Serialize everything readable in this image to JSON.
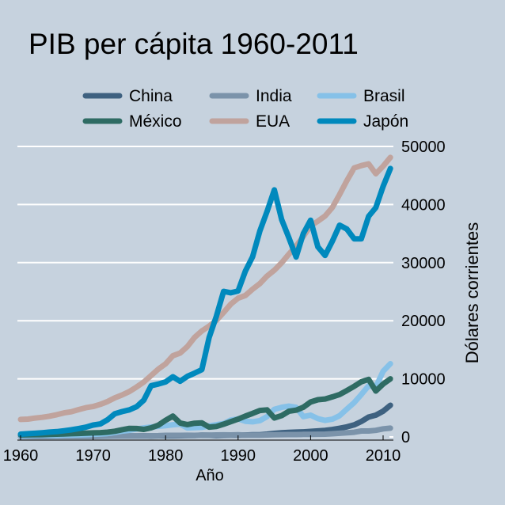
{
  "chart_data": {
    "type": "line",
    "title": "PIB per cápita 1960-2011",
    "xlabel": "Año",
    "ylabel": "Dólares corrientes",
    "xlim": [
      1960,
      2011
    ],
    "ylim": [
      0,
      50000
    ],
    "x_ticks": [
      "1960",
      "1970",
      "1980",
      "1990",
      "2000",
      "2010"
    ],
    "y_ticks": [
      "0",
      "10000",
      "20000",
      "30000",
      "40000",
      "50000"
    ],
    "grid": true,
    "y_axis_side": "right",
    "legend_placement": "top",
    "background": "#c6d2de",
    "x": [
      1960,
      1961,
      1962,
      1963,
      1964,
      1965,
      1966,
      1967,
      1968,
      1969,
      1970,
      1971,
      1972,
      1973,
      1974,
      1975,
      1976,
      1977,
      1978,
      1979,
      1980,
      1981,
      1982,
      1983,
      1984,
      1985,
      1986,
      1987,
      1988,
      1989,
      1990,
      1991,
      1992,
      1993,
      1994,
      1995,
      1996,
      1997,
      1998,
      1999,
      2000,
      2001,
      2002,
      2003,
      2004,
      2005,
      2006,
      2007,
      2008,
      2009,
      2010,
      2011
    ],
    "series": [
      {
        "name": "China",
        "color": "#3e6180",
        "values": [
          90,
          75,
          70,
          75,
          85,
          98,
          104,
          96,
          91,
          100,
          112,
          118,
          131,
          157,
          160,
          178,
          165,
          185,
          156,
          184,
          195,
          197,
          203,
          225,
          251,
          294,
          281,
          252,
          284,
          311,
          317,
          333,
          366,
          377,
          473,
          609,
          709,
          781,
          828,
          873,
          949,
          1042,
          1135,
          1274,
          1490,
          1731,
          2069,
          2651,
          3414,
          3749,
          4433,
          5447
        ]
      },
      {
        "name": "India",
        "color": "#7b93aa",
        "values": [
          84,
          89,
          92,
          101,
          115,
          119,
          90,
          96,
          99,
          107,
          112,
          118,
          122,
          143,
          163,
          158,
          161,
          186,
          206,
          224,
          267,
          271,
          274,
          291,
          277,
          296,
          310,
          340,
          354,
          346,
          376,
          303,
          317,
          301,
          346,
          374,
          400,
          415,
          413,
          441,
          452,
          462,
          473,
          546,
          627,
          714,
          806,
          1023,
          1022,
          1124,
          1387,
          1509
        ]
      },
      {
        "name": "Brasil",
        "color": "#86c1e8",
        "values": [
          210,
          220,
          250,
          280,
          260,
          260,
          300,
          330,
          360,
          390,
          450,
          510,
          590,
          780,
          1000,
          1150,
          1350,
          1550,
          1700,
          1820,
          1930,
          2100,
          2200,
          1550,
          1600,
          1650,
          1900,
          2100,
          2300,
          2900,
          3100,
          2700,
          2600,
          2800,
          3500,
          4750,
          5100,
          5300,
          5100,
          3500,
          3750,
          3150,
          2850,
          3050,
          3650,
          4800,
          5900,
          7300,
          8800,
          8600,
          11300,
          12600
        ]
      },
      {
        "name": "México",
        "color": "#2e6b63",
        "values": [
          340,
          360,
          380,
          400,
          450,
          480,
          520,
          560,
          600,
          650,
          690,
          730,
          820,
          980,
          1240,
          1470,
          1450,
          1290,
          1570,
          2010,
          2860,
          3580,
          2400,
          2120,
          2360,
          2410,
          1690,
          1800,
          2200,
          2630,
          3070,
          3580,
          4050,
          4550,
          4660,
          3260,
          3660,
          4410,
          4600,
          5110,
          6010,
          6400,
          6520,
          6900,
          7300,
          7990,
          8700,
          9500,
          9900,
          7900,
          9100,
          10000
        ]
      },
      {
        "name": "EUA",
        "color": "#c0a39d",
        "values": [
          3007,
          3067,
          3244,
          3375,
          3574,
          3828,
          4146,
          4336,
          4696,
          5032,
          5234,
          5609,
          6094,
          6726,
          7226,
          7801,
          8592,
          9453,
          10565,
          11674,
          12575,
          13976,
          14434,
          15544,
          17121,
          18237,
          19071,
          20039,
          21417,
          22857,
          23889,
          24342,
          25419,
          26387,
          27695,
          28691,
          29968,
          31459,
          32854,
          34515,
          36335,
          37133,
          38023,
          39496,
          41713,
          44115,
          46299,
          46700,
          47000,
          45300,
          46600,
          48100
        ]
      },
      {
        "name": "Japón",
        "color": "#0089bd",
        "values": [
          479,
          564,
          633,
          718,
          835,
          919,
          1058,
          1228,
          1450,
          1669,
          2037,
          2234,
          2950,
          3997,
          4354,
          4659,
          5198,
          6335,
          8821,
          9105,
          9463,
          10361,
          9578,
          10425,
          10984,
          11584,
          17112,
          20745,
          25051,
          24813,
          25124,
          28541,
          31013,
          35451,
          38814,
          42522,
          37423,
          34304,
          30969,
          35004,
          37300,
          32716,
          31236,
          33691,
          36442,
          35781,
          34102,
          34095,
          37972,
          39473,
          43118,
          46204
        ]
      }
    ]
  }
}
